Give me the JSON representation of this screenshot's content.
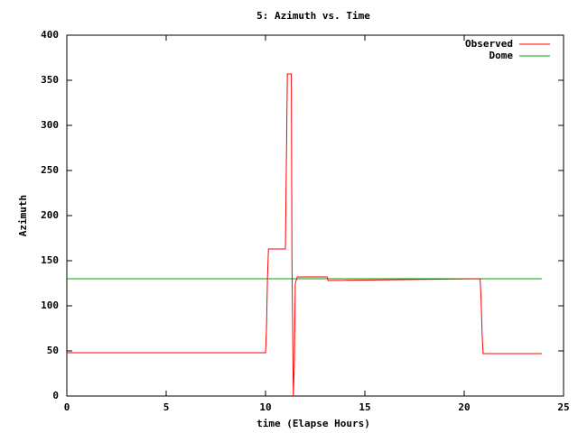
{
  "chart_data": {
    "type": "line",
    "title": "5: Azimuth vs. Time",
    "xlabel": "time (Elapse Hours)",
    "ylabel": "Azimuth",
    "xlim": [
      0,
      25
    ],
    "ylim": [
      0,
      400
    ],
    "xticks": [
      0,
      5,
      10,
      15,
      20,
      25
    ],
    "yticks": [
      0,
      50,
      100,
      150,
      200,
      250,
      300,
      350,
      400
    ],
    "legend": "upper right",
    "series": [
      {
        "name": "Observed",
        "color": "#ff0000",
        "x": [
          0,
          10.0,
          10.05,
          10.1,
          10.15,
          11.0,
          11.05,
          11.1,
          11.3,
          11.33,
          11.36,
          11.4,
          11.45,
          11.5,
          11.6,
          13.1,
          13.15,
          20.8,
          20.85,
          20.9,
          20.95,
          23.9
        ],
        "values": [
          48,
          48,
          75,
          133,
          163,
          163,
          260,
          357,
          357,
          150,
          90,
          0,
          35,
          125,
          132,
          132,
          128,
          130,
          108,
          70,
          47,
          47
        ]
      },
      {
        "name": "Dome",
        "color": "#00a000",
        "x": [
          0,
          23.9
        ],
        "values": [
          130,
          130
        ]
      }
    ]
  }
}
